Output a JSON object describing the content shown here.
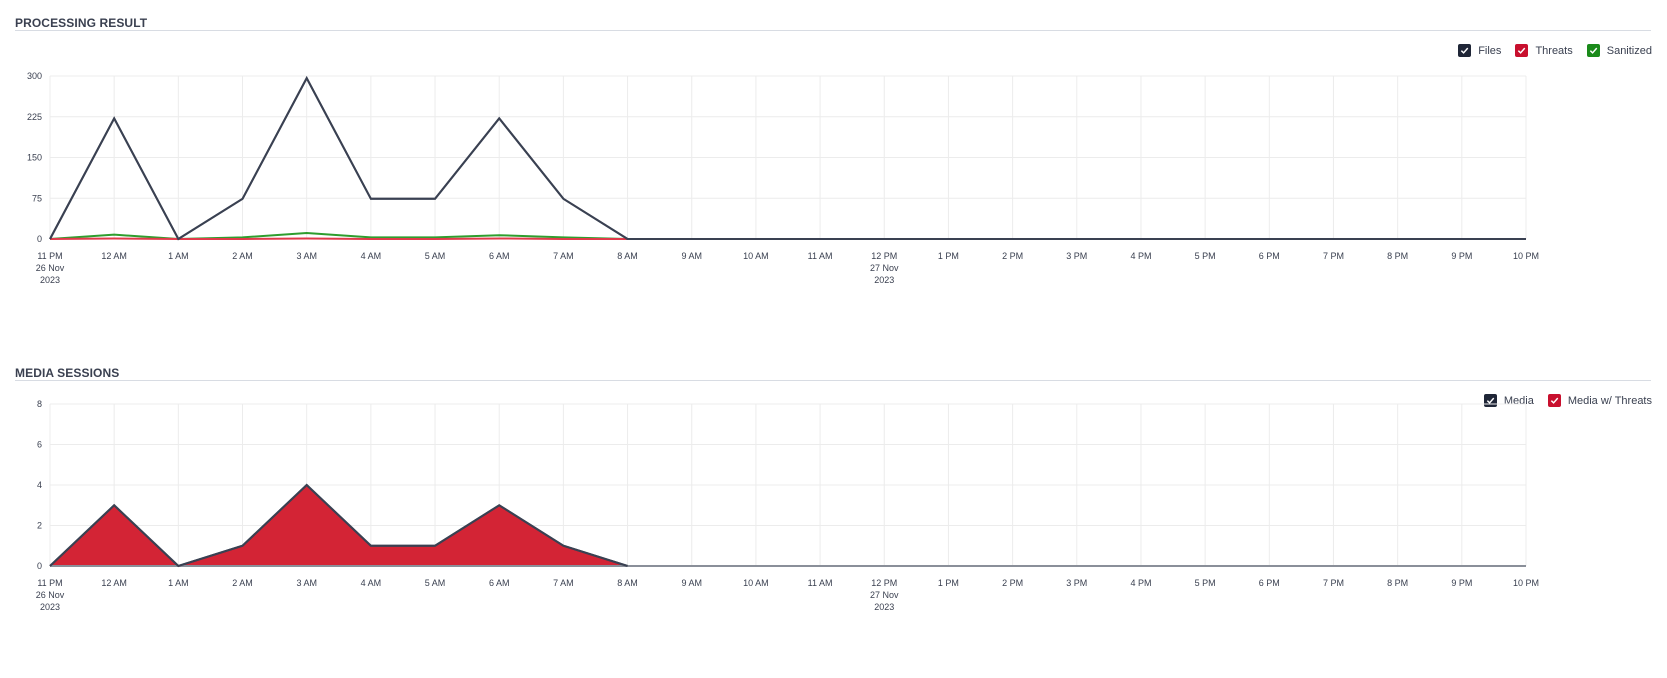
{
  "charts": [
    {
      "title": "PROCESSING RESULT",
      "legend": [
        {
          "label": "Files",
          "color": "#1f2637",
          "checked": true
        },
        {
          "label": "Threats",
          "color": "#c8102e",
          "checked": true
        },
        {
          "label": "Sanitized",
          "color": "#1a8a1a",
          "checked": true
        }
      ]
    },
    {
      "title": "MEDIA SESSIONS",
      "legend": [
        {
          "label": "Media",
          "color": "#1f2637",
          "checked": true
        },
        {
          "label": "Media w/ Threats",
          "color": "#c8102e",
          "checked": true
        }
      ]
    }
  ],
  "chart_data": [
    {
      "type": "line",
      "title": "PROCESSING RESULT",
      "x_ticks": [
        [
          "11 PM",
          "26 Nov",
          "2023"
        ],
        [
          "12 AM"
        ],
        [
          "1 AM"
        ],
        [
          "2 AM"
        ],
        [
          "3 AM"
        ],
        [
          "4 AM"
        ],
        [
          "5 AM"
        ],
        [
          "6 AM"
        ],
        [
          "7 AM"
        ],
        [
          "8 AM"
        ],
        [
          "9 AM"
        ],
        [
          "10 AM"
        ],
        [
          "11 AM"
        ],
        [
          "12 PM",
          "27 Nov",
          "2023"
        ],
        [
          "1 PM"
        ],
        [
          "2 PM"
        ],
        [
          "3 PM"
        ],
        [
          "4 PM"
        ],
        [
          "5 PM"
        ],
        [
          "6 PM"
        ],
        [
          "7 PM"
        ],
        [
          "8 PM"
        ],
        [
          "9 PM"
        ],
        [
          "10 PM"
        ]
      ],
      "ylim": [
        0,
        300
      ],
      "y_ticks": [
        "0",
        "75",
        "150",
        "225",
        "300"
      ],
      "grid": true,
      "legend_position": "top-right",
      "series": [
        {
          "name": "Files",
          "color": "#3a4152",
          "values": [
            0,
            222,
            0,
            74,
            296,
            74,
            74,
            222,
            74,
            0,
            0,
            0,
            0,
            0,
            0,
            0,
            0,
            0,
            0,
            0,
            0,
            0,
            0,
            0
          ]
        },
        {
          "name": "Threats",
          "color": "#e03a4a",
          "values": [
            0,
            1,
            0,
            0,
            1,
            0,
            0,
            1,
            0,
            0,
            0,
            0,
            0,
            0,
            0,
            0,
            0,
            0,
            0,
            0,
            0,
            0,
            0,
            0
          ]
        },
        {
          "name": "Sanitized",
          "color": "#2e9e2e",
          "values": [
            0,
            8,
            0,
            3,
            11,
            3,
            3,
            7,
            3,
            0,
            0,
            0,
            0,
            0,
            0,
            0,
            0,
            0,
            0,
            0,
            0,
            0,
            0,
            0
          ]
        }
      ]
    },
    {
      "type": "area",
      "title": "MEDIA SESSIONS",
      "x_ticks": [
        [
          "11 PM",
          "26 Nov",
          "2023"
        ],
        [
          "12 AM"
        ],
        [
          "1 AM"
        ],
        [
          "2 AM"
        ],
        [
          "3 AM"
        ],
        [
          "4 AM"
        ],
        [
          "5 AM"
        ],
        [
          "6 AM"
        ],
        [
          "7 AM"
        ],
        [
          "8 AM"
        ],
        [
          "9 AM"
        ],
        [
          "10 AM"
        ],
        [
          "11 AM"
        ],
        [
          "12 PM",
          "27 Nov",
          "2023"
        ],
        [
          "1 PM"
        ],
        [
          "2 PM"
        ],
        [
          "3 PM"
        ],
        [
          "4 PM"
        ],
        [
          "5 PM"
        ],
        [
          "6 PM"
        ],
        [
          "7 PM"
        ],
        [
          "8 PM"
        ],
        [
          "9 PM"
        ],
        [
          "10 PM"
        ]
      ],
      "ylim": [
        0,
        8
      ],
      "y_ticks": [
        "0",
        "2",
        "4",
        "6",
        "8"
      ],
      "grid": true,
      "legend_position": "top-right",
      "series": [
        {
          "name": "Media",
          "color": "#3a4152",
          "values": [
            0,
            3,
            0,
            1,
            4,
            1,
            1,
            3,
            1,
            0,
            0,
            0,
            0,
            0,
            0,
            0,
            0,
            0,
            0,
            0,
            0,
            0,
            0,
            0
          ]
        },
        {
          "name": "Media w/ Threats",
          "color": "#d32435",
          "fill": true,
          "values": [
            0,
            3,
            0,
            1,
            4,
            1,
            1,
            3,
            1,
            0,
            0,
            0,
            0,
            0,
            0,
            0,
            0,
            0,
            0,
            0,
            0,
            0,
            0,
            0
          ]
        }
      ]
    }
  ]
}
